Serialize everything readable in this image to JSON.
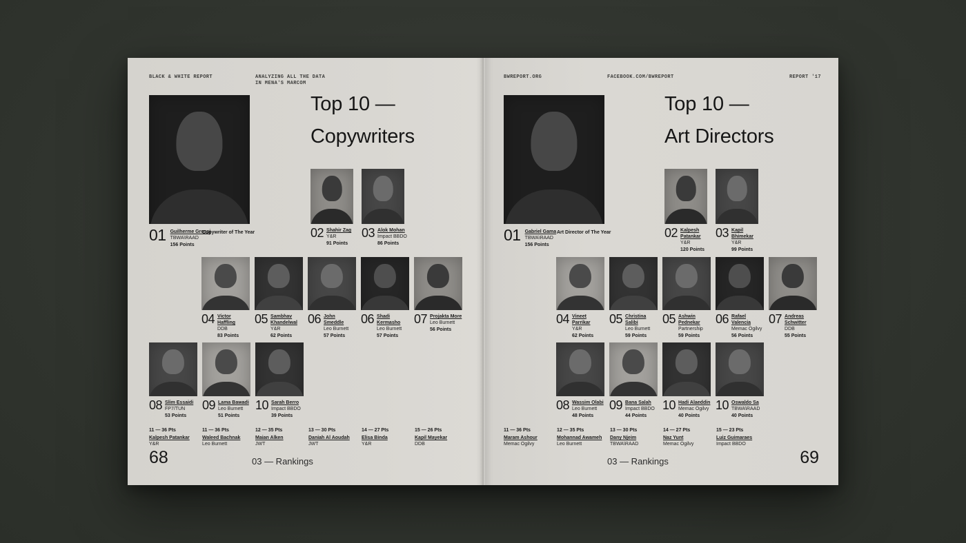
{
  "left_page": {
    "header_left": "BLACK & WHITE REPORT",
    "header_center": "ANALYZING ALL THE DATA\nIN MENA'S MARCOM",
    "title": "Top 10 —\nCopywriters",
    "winner_label": "Copywriter of The Year",
    "footer_label": "03 — Rankings",
    "page_number": "68",
    "entries": [
      {
        "rank": "01",
        "name": "Guilherme Grossi",
        "company": "TBWA\\RAAD",
        "points": "156  Points"
      },
      {
        "rank": "02",
        "name": "Shahir Zag",
        "company": "Y&R",
        "points": "91 Points"
      },
      {
        "rank": "03",
        "name": "Alok Mohan",
        "company": "Impact BBDO",
        "points": "86 Points"
      },
      {
        "rank": "04",
        "name": "Victor Haffling",
        "company": "DDB",
        "points": "83 Points"
      },
      {
        "rank": "05",
        "name": "Sambhav\nKhandelwal",
        "company": "Y&R",
        "points": "62 Points"
      },
      {
        "rank": "06",
        "name": "John Smeddle",
        "company": "Leo Burnett",
        "points": "57 Points"
      },
      {
        "rank": "06",
        "name": "Shadi Kermasho",
        "company": "Leo Burnett",
        "points": "57 Points"
      },
      {
        "rank": "07",
        "name": "Projakta More",
        "company": "Leo Burnett",
        "points": "56 Points"
      },
      {
        "rank": "08",
        "name": "Slim Essaidi",
        "company": "FP7/TUN",
        "points": "53 Points"
      },
      {
        "rank": "09",
        "name": "Lama Bawadi",
        "company": "Leo Burnett",
        "points": "51 Points"
      },
      {
        "rank": "10",
        "name": "Sarah Berro",
        "company": "Impact BBDO",
        "points": "39 Points"
      }
    ],
    "runners_up": [
      {
        "line": "11 — 36  Pts",
        "name": "Kalpesh Patankar",
        "company": "Y&R"
      },
      {
        "line": "11 — 36  Pts",
        "name": "Waleed Bachnak",
        "company": "Leo Burnett"
      },
      {
        "line": "12 — 35 Pts",
        "name": "Maian Alken",
        "company": "JWT"
      },
      {
        "line": "13 — 30 Pts",
        "name": "Daniah Al Aoudah",
        "company": "JWT"
      },
      {
        "line": "14 — 27 Pts",
        "name": "Elisa Binda",
        "company": "Y&R"
      },
      {
        "line": "15 — 26 Pts",
        "name": "Kapil Mayekar",
        "company": "DDB"
      }
    ]
  },
  "right_page": {
    "header_left": "BWREPORT.ORG",
    "header_center": "FACEBOOK.COM/BWREPORT",
    "header_right": "REPORT '17",
    "title": "Top 10 —\nArt Directors",
    "winner_label": "Art Director of The Year",
    "footer_label": "03 — Rankings",
    "page_number": "69",
    "entries": [
      {
        "rank": "01",
        "name": "Gabriel Gama",
        "company": "TBWA\\RAAD",
        "points": "156  Points"
      },
      {
        "rank": "02",
        "name": "Kalpesh Patankar",
        "company": "Y&R",
        "points": "120 Points"
      },
      {
        "rank": "03",
        "name": "Kapil Bhimekar",
        "company": "Y&R",
        "points": "99 Points"
      },
      {
        "rank": "04",
        "name": "Vineet Parrikar",
        "company": "Y&R",
        "points": "62 Points"
      },
      {
        "rank": "05",
        "name": "Christina Salibi",
        "company": "Leo Burnett",
        "points": "59 Points"
      },
      {
        "rank": "05",
        "name": "Ashwin Pednekar",
        "company": "Partnership",
        "points": "59 Points"
      },
      {
        "rank": "06",
        "name": "Rafael Valencia",
        "company": "Memac Ogilvy",
        "points": "56 Points"
      },
      {
        "rank": "07",
        "name": "Andreas Schwitter",
        "company": "DDB",
        "points": "55 Points"
      },
      {
        "rank": "08",
        "name": "Wassim Olabi",
        "company": "Leo Burnett",
        "points": "48 Points"
      },
      {
        "rank": "09",
        "name": "Bana Salah",
        "company": "Impact BBDO",
        "points": "44 Points"
      },
      {
        "rank": "10",
        "name": "Hadi Alaeddin",
        "company": "Memac Ogilvy",
        "points": "40 Points"
      },
      {
        "rank": "10",
        "name": "Oswaldo Sa",
        "company": "TBWA\\RAAD",
        "points": "40 Points"
      }
    ],
    "runners_up": [
      {
        "line": "11 — 36  Pts",
        "name": "Maram Ashour",
        "company": "Memac Ogilvy"
      },
      {
        "line": "12 — 35 Pts",
        "name": "Mohannad Awameh",
        "company": "Leo Burnett"
      },
      {
        "line": "13 — 30 Pts",
        "name": "Dany Njeim",
        "company": "TBWA\\RAAD"
      },
      {
        "line": "14 — 27 Pts",
        "name": "Naz Yunt",
        "company": "Memac Ogilvy"
      },
      {
        "line": "15 — 23 Pts",
        "name": "Luiz Guimaraes",
        "company": "Impact BBDO"
      }
    ]
  }
}
